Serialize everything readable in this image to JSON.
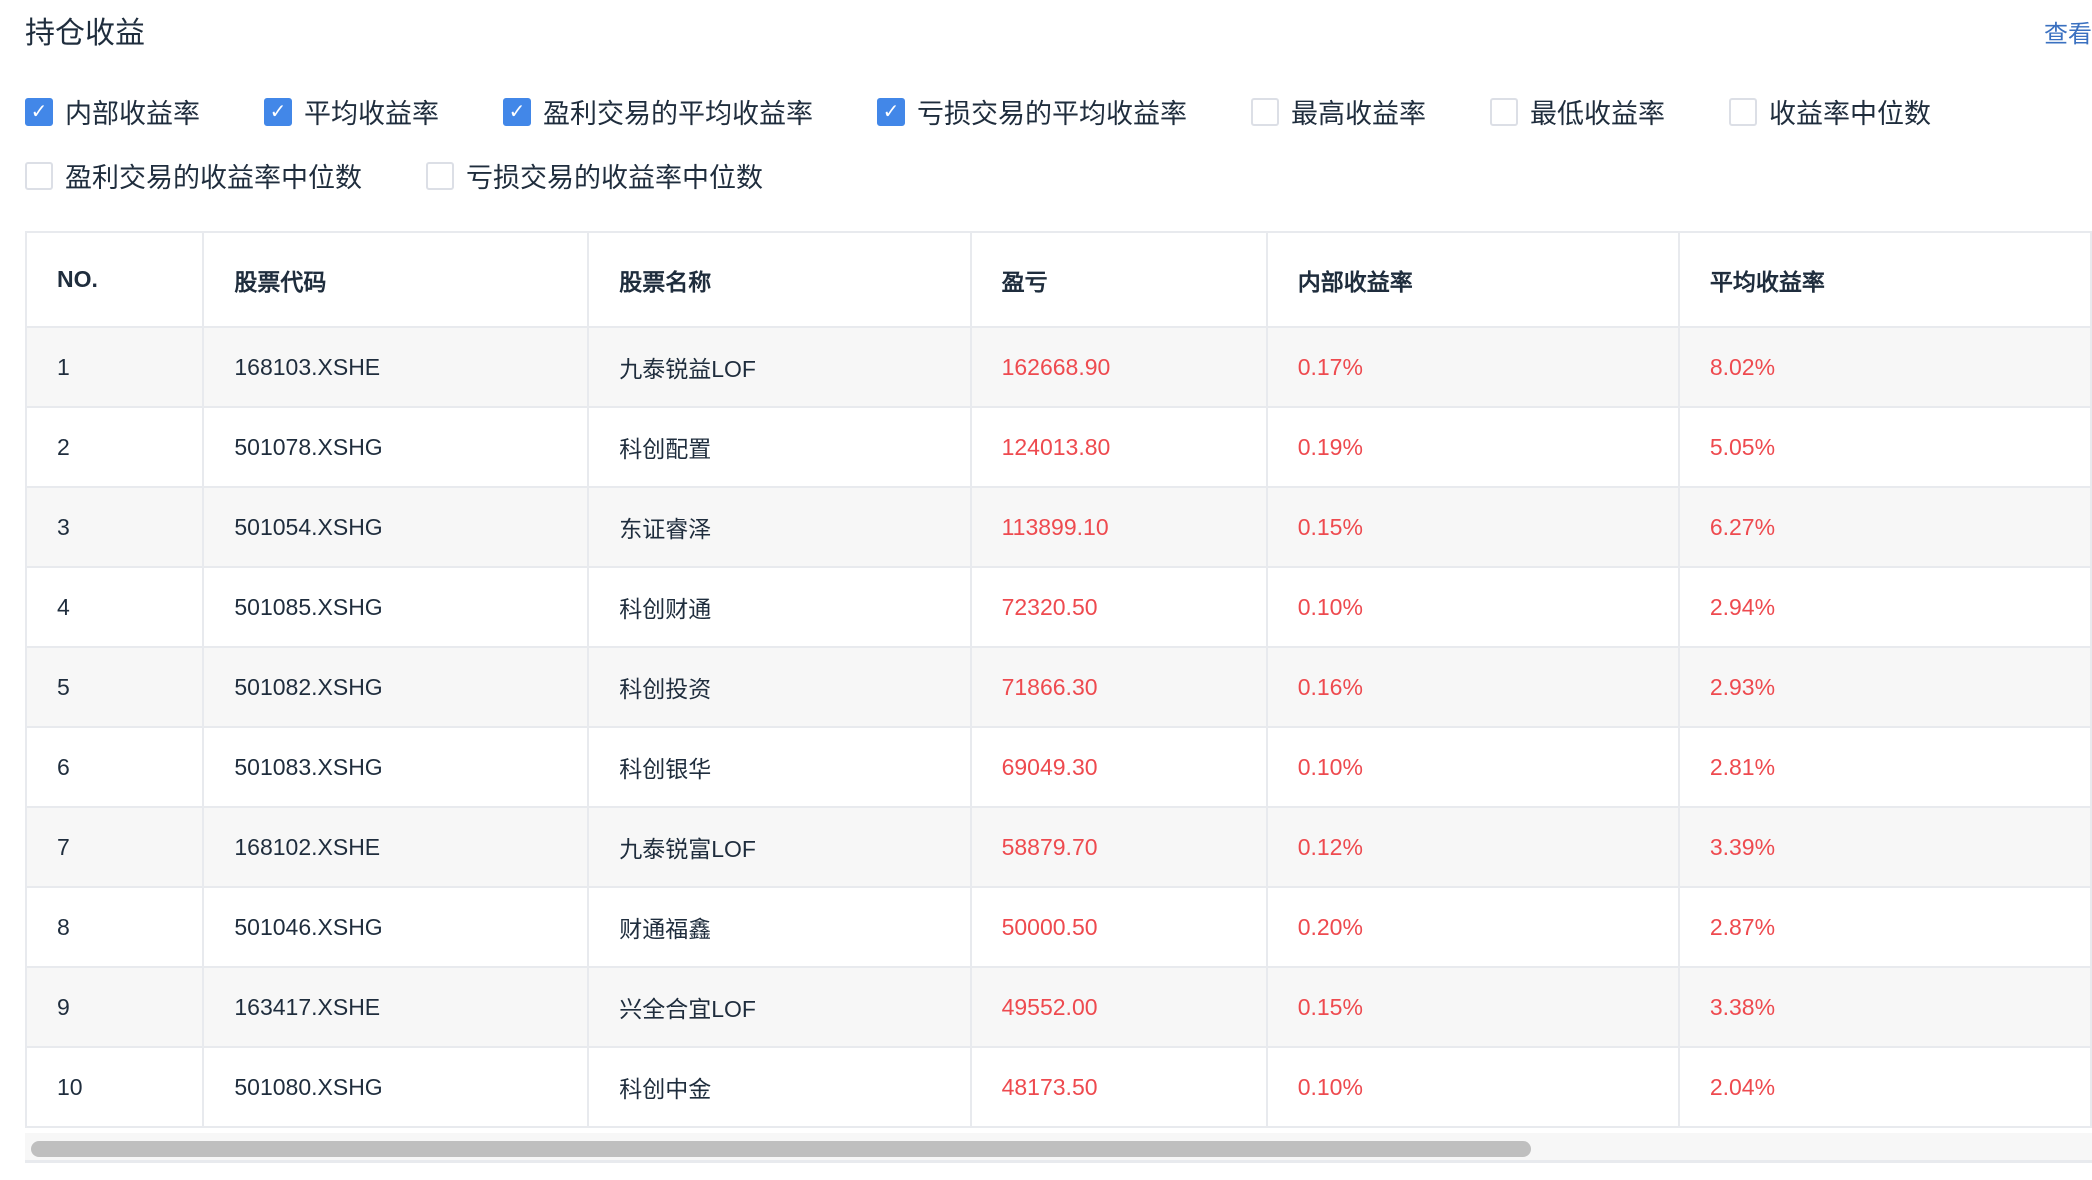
{
  "title": "持仓收益",
  "view_link": "查看",
  "checkboxes": [
    {
      "label": "内部收益率",
      "checked": true
    },
    {
      "label": "平均收益率",
      "checked": true
    },
    {
      "label": "盈利交易的平均收益率",
      "checked": true
    },
    {
      "label": "亏损交易的平均收益率",
      "checked": true
    },
    {
      "label": "最高收益率",
      "checked": false
    },
    {
      "label": "最低收益率",
      "checked": false
    },
    {
      "label": "收益率中位数",
      "checked": false
    },
    {
      "label": "盈利交易的收益率中位数",
      "checked": false
    },
    {
      "label": "亏损交易的收益率中位数",
      "checked": false
    }
  ],
  "table": {
    "headers": [
      "NO.",
      "股票代码",
      "股票名称",
      "盈亏",
      "内部收益率",
      "平均收益率"
    ],
    "rows": [
      [
        "1",
        "168103.XSHE",
        "九泰锐益LOF",
        "162668.90",
        "0.17%",
        "8.02%"
      ],
      [
        "2",
        "501078.XSHG",
        "科创配置",
        "124013.80",
        "0.19%",
        "5.05%"
      ],
      [
        "3",
        "501054.XSHG",
        "东证睿泽",
        "113899.10",
        "0.15%",
        "6.27%"
      ],
      [
        "4",
        "501085.XSHG",
        "科创财通",
        "72320.50",
        "0.10%",
        "2.94%"
      ],
      [
        "5",
        "501082.XSHG",
        "科创投资",
        "71866.30",
        "0.16%",
        "2.93%"
      ],
      [
        "6",
        "501083.XSHG",
        "科创银华",
        "69049.30",
        "0.10%",
        "2.81%"
      ],
      [
        "7",
        "168102.XSHE",
        "九泰锐富LOF",
        "58879.70",
        "0.12%",
        "3.39%"
      ],
      [
        "8",
        "501046.XSHG",
        "财通福鑫",
        "50000.50",
        "0.20%",
        "2.87%"
      ],
      [
        "9",
        "163417.XSHE",
        "兴全合宜LOF",
        "49552.00",
        "0.15%",
        "3.38%"
      ],
      [
        "10",
        "501080.XSHG",
        "科创中金",
        "48173.50",
        "0.10%",
        "2.04%"
      ]
    ]
  },
  "colors": {
    "accent": "#4287e8",
    "profit": "#ee4a4f",
    "link": "#3a70c0"
  }
}
